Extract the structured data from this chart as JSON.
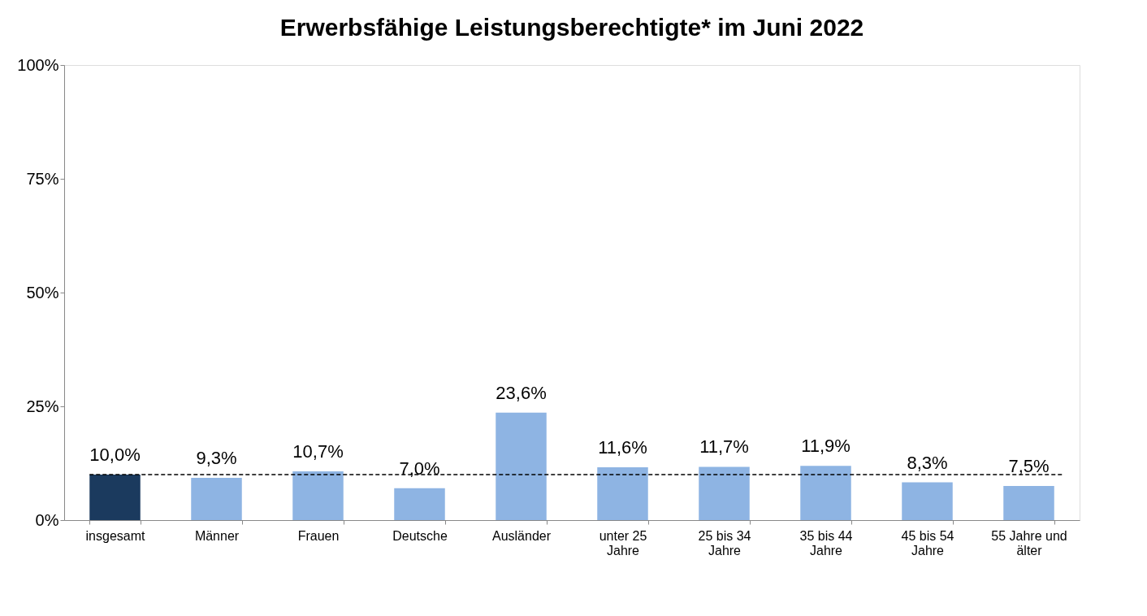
{
  "chart_data": {
    "type": "bar",
    "title": "Erwerbsfähige Leistungsberechtigte* im Juni 2022",
    "categories": [
      "insgesamt",
      "Männer",
      "Frauen",
      "Deutsche",
      "Ausländer",
      "unter 25 Jahre",
      "25 bis 34 Jahre",
      "35 bis 44 Jahre",
      "45 bis 54 Jahre",
      "55 Jahre und älter"
    ],
    "values": [
      10.0,
      9.3,
      10.7,
      7.0,
      23.6,
      11.6,
      11.7,
      11.9,
      8.3,
      7.5
    ],
    "colors": [
      "#1b3a5e",
      "#8eb4e3",
      "#8eb4e3",
      "#8eb4e3",
      "#8eb4e3",
      "#8eb4e3",
      "#8eb4e3",
      "#8eb4e3",
      "#8eb4e3",
      "#8eb4e3"
    ],
    "value_labels": [
      "10,0%",
      "9,3%",
      "10,7%",
      "7,0%",
      "23,6%",
      "11,6%",
      "11,7%",
      "11,9%",
      "8,3%",
      "7,5%"
    ],
    "ylim": [
      0,
      100
    ],
    "yticks": [
      {
        "value": 0,
        "label": "0%"
      },
      {
        "value": 25,
        "label": "25%"
      },
      {
        "value": 50,
        "label": "50%"
      },
      {
        "value": 75,
        "label": "75%"
      },
      {
        "value": 100,
        "label": "100%"
      }
    ],
    "ref_lines": [
      {
        "axis": "y",
        "value": 10.0,
        "label": null,
        "color": "#000000",
        "line_style": "dashed"
      }
    ],
    "grid": false
  }
}
